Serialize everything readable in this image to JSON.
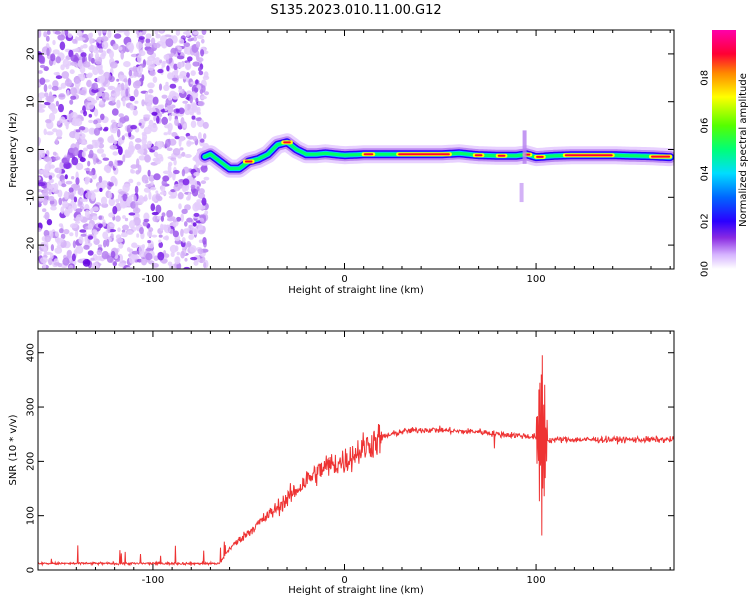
{
  "colors": {
    "spectrum": [
      "#ffffff",
      "#e6ccff",
      "#9a3ae8",
      "#3c00ff",
      "#0044ff",
      "#00ccff",
      "#00ff66",
      "#66ff00",
      "#ffff00",
      "#ff6600",
      "#ff0033",
      "#ff00aa"
    ],
    "snr_line": "#ee3333",
    "frame": "#000000"
  },
  "chart_data": [
    {
      "type": "heatmap",
      "title": "S135.2023.010.11.00.G12",
      "xlabel": "Height of straight line (km)",
      "ylabel": "Frequency (Hz)",
      "xlim": [
        -160,
        172
      ],
      "ylim": [
        -25,
        25
      ],
      "x_ticks": [
        -100,
        0,
        100
      ],
      "y_ticks": [
        -20,
        -10,
        0,
        10,
        20
      ],
      "noise_region_x": [
        -160,
        -72
      ],
      "trace": {
        "x": [
          -73,
          -70,
          -65,
          -60,
          -55,
          -50,
          -45,
          -40,
          -35,
          -30,
          -25,
          -20,
          -15,
          -10,
          -5,
          0,
          10,
          20,
          30,
          40,
          50,
          60,
          70,
          80,
          90,
          95,
          100,
          110,
          120,
          130,
          140,
          150,
          160,
          170
        ],
        "y": [
          -1.5,
          -1,
          -2.5,
          -4,
          -4,
          -2.5,
          -2,
          -1,
          1,
          1.5,
          0,
          -1,
          -1,
          -0.8,
          -1,
          -1.2,
          -1,
          -1,
          -1,
          -1,
          -1,
          -0.8,
          -1.2,
          -1.3,
          -1.3,
          -1,
          -1.6,
          -1.3,
          -1.2,
          -1.2,
          -1.2,
          -1.3,
          -1.4,
          -1.6
        ]
      },
      "colorbar": {
        "label": "Normalized spectral amplitude",
        "range": [
          0,
          1
        ],
        "ticks": [
          "0.0",
          "0.2",
          "0.4",
          "0.6",
          "0.8"
        ]
      }
    },
    {
      "type": "line",
      "xlabel": "Height of straight line (km)",
      "ylabel": "SNR (10 * v/v)",
      "xlim": [
        -160,
        172
      ],
      "ylim": [
        0,
        440
      ],
      "x_ticks": [
        -100,
        0,
        100
      ],
      "y_ticks": [
        0,
        100,
        200,
        300,
        400
      ],
      "series": [
        {
          "x": [
            -160,
            -140,
            -120,
            -100,
            -80,
            -65,
            -60,
            -50,
            -40,
            -30,
            -20,
            -10,
            0,
            10,
            20,
            30,
            40,
            50,
            60,
            70,
            80,
            90,
            100,
            103,
            106,
            110,
            120,
            130,
            140,
            150,
            160,
            172
          ],
          "values": [
            12,
            12,
            12,
            12,
            12,
            12,
            40,
            70,
            100,
            130,
            165,
            190,
            200,
            225,
            245,
            255,
            258,
            258,
            255,
            255,
            250,
            248,
            245,
            240,
            238,
            240,
            240,
            240,
            240,
            240,
            240,
            240
          ]
        }
      ]
    }
  ]
}
